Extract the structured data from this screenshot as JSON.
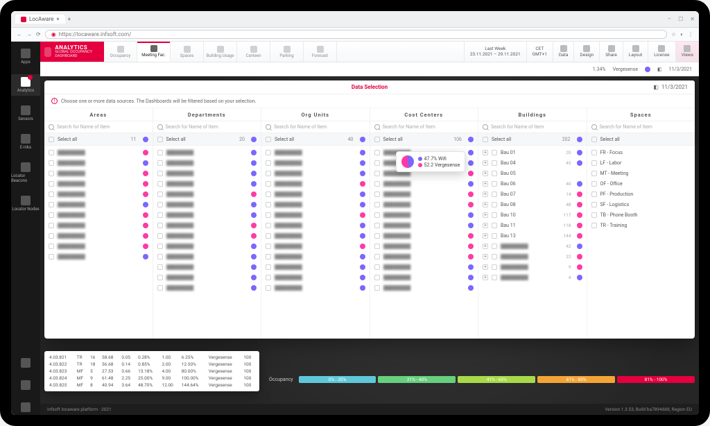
{
  "browser": {
    "tab_title": "LocAware",
    "url": "https://locaware.infsoft.com/",
    "window_controls": [
      "–",
      "☐",
      "✕"
    ]
  },
  "rail": {
    "items": [
      {
        "label": "Apps"
      },
      {
        "label": "Analytics",
        "active": true,
        "badge": true
      },
      {
        "label": "Sensors"
      },
      {
        "label": "E-Inks"
      },
      {
        "label": "Locator Beacons"
      },
      {
        "label": "Locator Nodes"
      }
    ]
  },
  "brand": {
    "title": "ANALYTICS",
    "subtitle": "GLOBAL OCCUPANCY DASHBOARD"
  },
  "nav_tabs": [
    {
      "label": "Occupancy"
    },
    {
      "label": "Meeting Fac.",
      "active": true
    },
    {
      "label": "Spaces"
    },
    {
      "label": "Building Usage"
    },
    {
      "label": "Canteen"
    },
    {
      "label": "Parking"
    },
    {
      "label": "Forecast"
    }
  ],
  "top_right": [
    {
      "line1": "Last Week",
      "line2": "23.11.2021 – 29.11.2021"
    },
    {
      "line1": "CET",
      "line2": "GMT+1"
    },
    {
      "icon": true,
      "line2": "Data"
    },
    {
      "icon": true,
      "line2": "Design"
    },
    {
      "icon": true,
      "line2": "Share"
    },
    {
      "icon": true,
      "line2": "Layout"
    },
    {
      "icon": true,
      "line2": "License"
    },
    {
      "icon": true,
      "line2": "Views",
      "hl": true
    }
  ],
  "context": {
    "pct": "1.34%",
    "pct_label": "Vergesense",
    "date": "11/3/2021"
  },
  "modal": {
    "title": "Data Selection",
    "date": "11/3/2021",
    "note": "Choose one or more data sources. The Dashboards will be filtered based on your selection.",
    "search_placeholder": "Search for Name of Item",
    "columns": [
      {
        "title": "Areas",
        "count": 11,
        "sel_dot": "#7b66ff",
        "rows": [
          {
            "blur": true,
            "dot": "#ff3aa3"
          },
          {
            "blur": true,
            "dot": "#7b66ff"
          },
          {
            "blur": true,
            "dot": "#ff3aa3"
          },
          {
            "blur": true,
            "dot": "#ff3aa3"
          },
          {
            "blur": true,
            "dot": "#ff3aa3"
          },
          {
            "blur": true,
            "dot": "#7b66ff"
          },
          {
            "blur": true,
            "dot": "#ff3aa3"
          },
          {
            "blur": true,
            "dot": "#ff3aa3"
          },
          {
            "blur": true,
            "dot": "#ff3aa3"
          },
          {
            "blur": true,
            "dot": "#ff3aa3"
          },
          {
            "blur": true,
            "dot": "#7b66ff"
          }
        ]
      },
      {
        "title": "Departments",
        "count": 20,
        "sel_dot": "#7b66ff",
        "rows": [
          {
            "blur": true,
            "dot": "#7b66ff"
          },
          {
            "blur": true,
            "dot": "#7b66ff"
          },
          {
            "blur": true,
            "dot": "#7b66ff"
          },
          {
            "blur": true,
            "dot": "#7b66ff"
          },
          {
            "blur": true,
            "dot": "#ff3aa3"
          },
          {
            "blur": true,
            "dot": "#7b66ff"
          },
          {
            "blur": true,
            "dot": "#7b66ff"
          },
          {
            "blur": true,
            "dot": "#ff3aa3"
          },
          {
            "blur": true,
            "dot": "#ff3aa3"
          },
          {
            "blur": true,
            "dot": "#7b66ff"
          },
          {
            "blur": true,
            "dot": "#7b66ff"
          },
          {
            "blur": true,
            "dot": "#7b66ff"
          },
          {
            "blur": true,
            "dot": "#7b66ff"
          },
          {
            "blur": true,
            "dot": "#7b66ff"
          }
        ]
      },
      {
        "title": "Org Units",
        "count": 40,
        "sel_dot": "#7b66ff",
        "rows": [
          {
            "blur": true,
            "dot": "#7b66ff"
          },
          {
            "blur": true,
            "dot": "#7b66ff"
          },
          {
            "blur": true,
            "dot": "#7b66ff"
          },
          {
            "blur": true,
            "dot": "#ff3aa3"
          },
          {
            "blur": true,
            "dot": "#7b66ff"
          },
          {
            "blur": true,
            "dot": "#7b66ff"
          },
          {
            "blur": true,
            "dot": "#ff3aa3"
          },
          {
            "blur": true,
            "dot": "#7b66ff"
          },
          {
            "blur": true,
            "dot": "#7b66ff"
          },
          {
            "blur": true,
            "dot": "#ff3aa3"
          },
          {
            "blur": true,
            "dot": "#7b66ff"
          },
          {
            "blur": true,
            "dot": "#7b66ff"
          },
          {
            "blur": true,
            "dot": "#7b66ff"
          },
          {
            "blur": true,
            "dot": "#7b66ff"
          }
        ]
      },
      {
        "title": "Cost Centers",
        "count": 106,
        "sel_dot": "#7b66ff",
        "rows": [
          {
            "blur": true,
            "dot": "#7b66ff"
          },
          {
            "blur": true,
            "dot": "#7b66ff"
          },
          {
            "blur": true,
            "dot": "#ff3aa3"
          },
          {
            "blur": true,
            "dot": "#7b66ff"
          },
          {
            "blur": true,
            "dot": "#ff3aa3"
          },
          {
            "blur": true,
            "dot": "#ff3aa3"
          },
          {
            "blur": true,
            "dot": "#7b66ff"
          },
          {
            "blur": true,
            "dot": "#7b66ff"
          },
          {
            "blur": true,
            "dot": "#ff3aa3"
          },
          {
            "blur": true,
            "dot": "#ff3aa3"
          },
          {
            "blur": true,
            "dot": "#ff3aa3"
          },
          {
            "blur": true,
            "dot": "#7b66ff"
          },
          {
            "blur": true,
            "dot": "#7b66ff"
          },
          {
            "blur": true,
            "dot": "#7b66ff"
          }
        ]
      },
      {
        "title": "Buildings",
        "count": 202,
        "sel_dot": "#7b66ff",
        "expand": true,
        "rows": [
          {
            "label": "Bau 01",
            "n": 20,
            "dot": "#7b66ff"
          },
          {
            "label": "Bau 04",
            "n": 45,
            "dot": "#7b66ff"
          },
          {
            "label": "Bau 05",
            "n": "",
            "dot": "",
            "tooltip": true
          },
          {
            "label": "Bau 06",
            "n": 40,
            "dot": "#7b66ff"
          },
          {
            "label": "Bau 07",
            "n": 14,
            "dot": "#ff3aa3"
          },
          {
            "label": "Bau 08",
            "n": 48,
            "dot": "#ff3aa3"
          },
          {
            "label": "Bau 10",
            "n": 117,
            "dot": "#ff3aa3"
          },
          {
            "label": "Bau 11",
            "n": 118,
            "dot": "#ff3aa3"
          },
          {
            "label": "Bau 13",
            "n": 144,
            "dot": "#ff3aa3"
          },
          {
            "blur": true,
            "n": 42,
            "dot": "#7b66ff"
          },
          {
            "blur": true,
            "n": 22,
            "dot": "#ff3aa3"
          },
          {
            "blur": true,
            "n": 9,
            "dot": "#ff3aa3"
          },
          {
            "blur": true,
            "n": 4,
            "dot": "#7b66ff"
          }
        ]
      },
      {
        "title": "Spaces",
        "count": "",
        "partial": true,
        "rows": [
          {
            "label": "FR - Focus"
          },
          {
            "label": "LF - Labor"
          },
          {
            "label": "MT - Meeting"
          },
          {
            "label": "OF - Office"
          },
          {
            "label": "PF - Production"
          },
          {
            "label": "SF - Logistics"
          },
          {
            "label": "TB - Phone Booth"
          },
          {
            "label": "TR - Training"
          }
        ]
      }
    ],
    "select_all_label": "Select all",
    "tooltip": {
      "a_pct": "47.7%",
      "a_lbl": "Wifi",
      "b_pct": "52.2",
      "b_lbl": "Vergesense",
      "a_color": "#7b66ff",
      "b_color": "#ff3aa3"
    }
  },
  "table": {
    "rows": [
      [
        "4.03.821",
        "TR",
        "16",
        "58.68",
        "0.05",
        "0.28%",
        "1.00",
        "6.25%",
        "Vergesense",
        "100"
      ],
      [
        "4.03.822",
        "TR",
        "18",
        "56.68",
        "0.14",
        "0.85%",
        "2.00",
        "12.50%",
        "Vergesense",
        "100"
      ],
      [
        "4.03.823",
        "MF",
        "5",
        "27.53",
        "0.66",
        "13.18%",
        "4.00",
        "80.00%",
        "Vergesense",
        "100"
      ],
      [
        "4.03.824",
        "MF",
        "9",
        "61.48",
        "2.25",
        "25.00%",
        "9.00",
        "100.00%",
        "Vergesense",
        "100"
      ],
      [
        "4.03.825",
        "MF",
        "8",
        "40.94",
        "3.64",
        "48.70%",
        "12.00",
        "144.64%",
        "Vergesense",
        "100"
      ]
    ]
  },
  "occupancy": {
    "label": "Occupancy",
    "segments": [
      {
        "label": "0% - 20%",
        "color": "#5fc8d8"
      },
      {
        "label": "21% - 40%",
        "color": "#67d07f"
      },
      {
        "label": "41% - 60%",
        "color": "#a8d94a"
      },
      {
        "label": "61% - 80%",
        "color": "#f4a437"
      },
      {
        "label": "81% - 100%",
        "color": "#e4003f"
      }
    ]
  },
  "footer": {
    "left": "infsoft locaware platform · 2021",
    "right": "Version 1.3.53, Build ba7894ddd, Region EU"
  },
  "colors": {
    "brand": "#e4003f",
    "purple": "#7b66ff",
    "pink": "#ff3aa3"
  }
}
